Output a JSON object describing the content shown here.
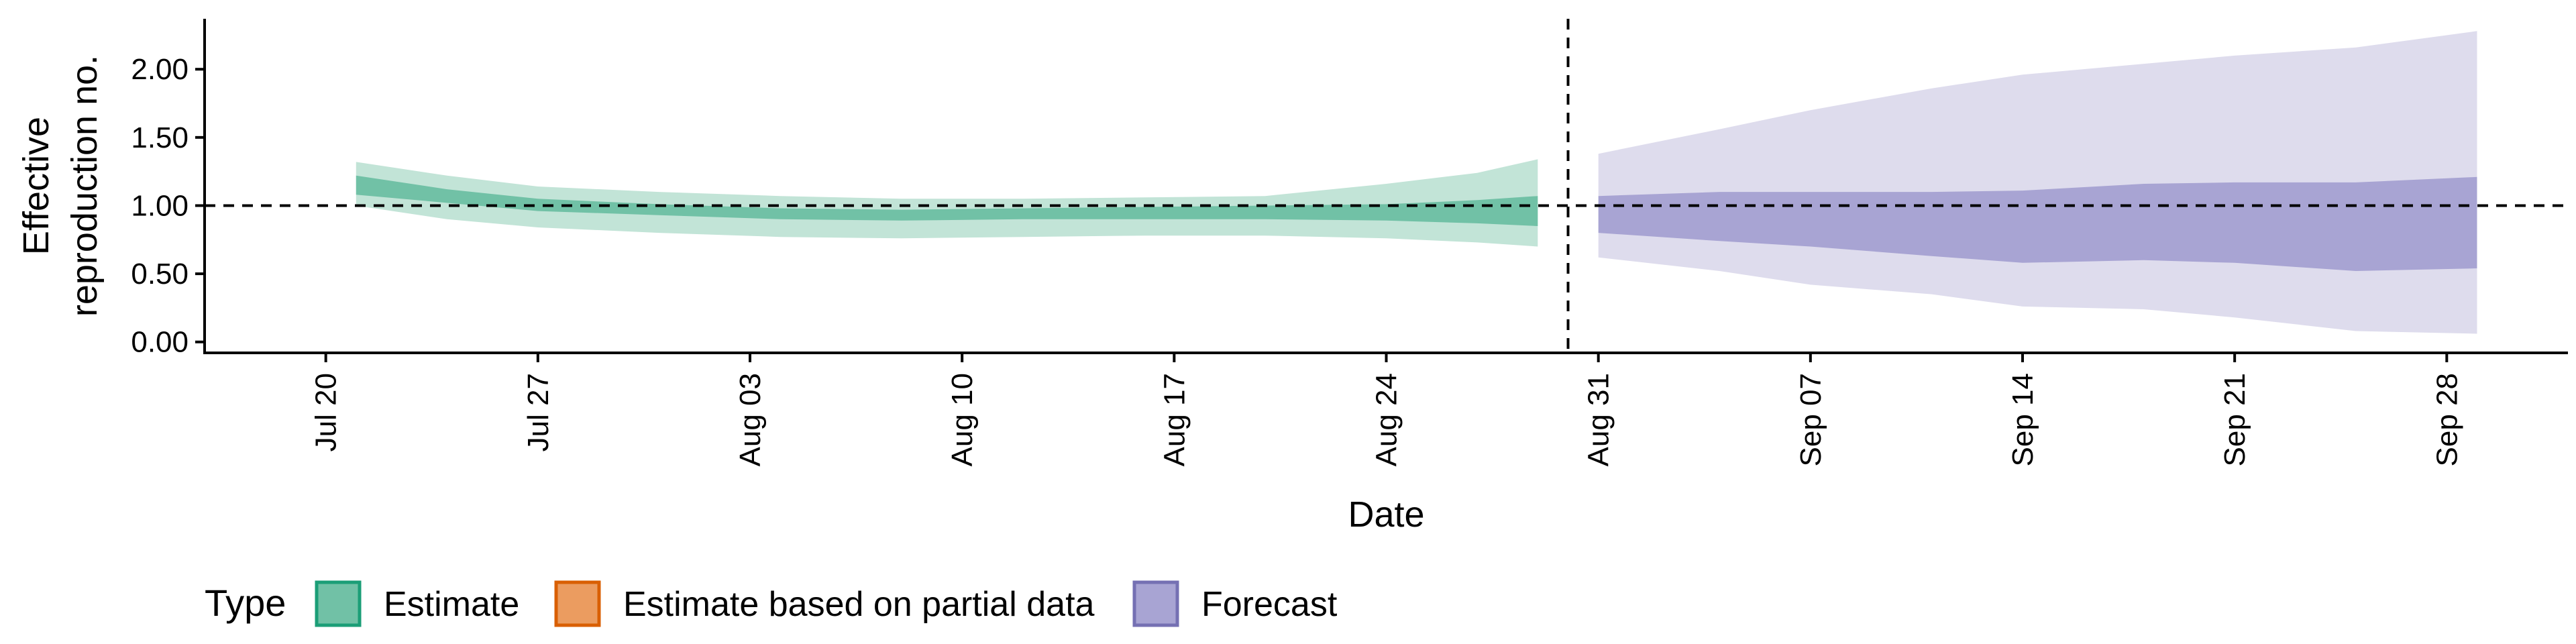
{
  "chart_data": {
    "type": "area",
    "xlabel": "Date",
    "ylabel_lines": [
      "Effective",
      "reproduction no."
    ],
    "ylim": [
      -0.08,
      2.37
    ],
    "yticks": [
      "0.00",
      "0.50",
      "1.00",
      "1.50",
      "2.00"
    ],
    "xlim": [
      "2020-07-16",
      "2020-10-02"
    ],
    "xticks": [
      {
        "date": "2020-07-20",
        "label": "Jul 20"
      },
      {
        "date": "2020-07-27",
        "label": "Jul 27"
      },
      {
        "date": "2020-08-03",
        "label": "Aug 03"
      },
      {
        "date": "2020-08-10",
        "label": "Aug 10"
      },
      {
        "date": "2020-08-17",
        "label": "Aug 17"
      },
      {
        "date": "2020-08-24",
        "label": "Aug 24"
      },
      {
        "date": "2020-08-31",
        "label": "Aug 31"
      },
      {
        "date": "2020-09-07",
        "label": "Sep 07"
      },
      {
        "date": "2020-09-14",
        "label": "Sep 14"
      },
      {
        "date": "2020-09-21",
        "label": "Sep 21"
      },
      {
        "date": "2020-09-28",
        "label": "Sep 28"
      }
    ],
    "reference_hline": 1.0,
    "reference_vline": "2020-08-30",
    "legend": {
      "title": "Type",
      "placement": "bottom",
      "entries": [
        {
          "label": "Estimate",
          "fill": "#71c1a6",
          "stroke": "#1b9e77"
        },
        {
          "label": "Estimate based on partial data",
          "fill": "#eb9c60",
          "stroke": "#d95f02"
        },
        {
          "label": "Forecast",
          "fill": "#a8a4d3",
          "stroke": "#7570b3"
        }
      ]
    },
    "series": [
      {
        "name": "Estimate",
        "outer_color": "#c2e4d7",
        "inner_color": "#71c1a6",
        "points": [
          {
            "x": "2020-07-21",
            "outer": [
              1.0,
              1.32
            ],
            "inner": [
              1.08,
              1.22
            ]
          },
          {
            "x": "2020-07-24",
            "outer": [
              0.9,
              1.22
            ],
            "inner": [
              1.02,
              1.12
            ]
          },
          {
            "x": "2020-07-27",
            "outer": [
              0.84,
              1.14
            ],
            "inner": [
              0.96,
              1.05
            ]
          },
          {
            "x": "2020-07-31",
            "outer": [
              0.8,
              1.1
            ],
            "inner": [
              0.93,
              1.01
            ]
          },
          {
            "x": "2020-08-04",
            "outer": [
              0.77,
              1.07
            ],
            "inner": [
              0.9,
              0.98
            ]
          },
          {
            "x": "2020-08-08",
            "outer": [
              0.76,
              1.05
            ],
            "inner": [
              0.89,
              0.97
            ]
          },
          {
            "x": "2020-08-12",
            "outer": [
              0.77,
              1.05
            ],
            "inner": [
              0.9,
              0.98
            ]
          },
          {
            "x": "2020-08-16",
            "outer": [
              0.78,
              1.06
            ],
            "inner": [
              0.9,
              0.99
            ]
          },
          {
            "x": "2020-08-20",
            "outer": [
              0.78,
              1.07
            ],
            "inner": [
              0.9,
              1.0
            ]
          },
          {
            "x": "2020-08-24",
            "outer": [
              0.76,
              1.16
            ],
            "inner": [
              0.89,
              1.01
            ]
          },
          {
            "x": "2020-08-27",
            "outer": [
              0.73,
              1.24
            ],
            "inner": [
              0.87,
              1.04
            ]
          },
          {
            "x": "2020-08-29",
            "outer": [
              0.7,
              1.34
            ],
            "inner": [
              0.85,
              1.07
            ]
          }
        ]
      },
      {
        "name": "Forecast",
        "outer_color": "#dedced",
        "inner_color": "#a8a4d3",
        "points": [
          {
            "x": "2020-08-31",
            "outer": [
              0.62,
              1.38
            ],
            "inner": [
              0.8,
              1.07
            ]
          },
          {
            "x": "2020-09-04",
            "outer": [
              0.52,
              1.56
            ],
            "inner": [
              0.74,
              1.1
            ]
          },
          {
            "x": "2020-09-07",
            "outer": [
              0.42,
              1.7
            ],
            "inner": [
              0.7,
              1.1
            ]
          },
          {
            "x": "2020-09-11",
            "outer": [
              0.35,
              1.86
            ],
            "inner": [
              0.63,
              1.1
            ]
          },
          {
            "x": "2020-09-14",
            "outer": [
              0.26,
              1.96
            ],
            "inner": [
              0.58,
              1.11
            ]
          },
          {
            "x": "2020-09-18",
            "outer": [
              0.24,
              2.04
            ],
            "inner": [
              0.6,
              1.16
            ]
          },
          {
            "x": "2020-09-21",
            "outer": [
              0.18,
              2.1
            ],
            "inner": [
              0.58,
              1.17
            ]
          },
          {
            "x": "2020-09-25",
            "outer": [
              0.08,
              2.16
            ],
            "inner": [
              0.52,
              1.17
            ]
          },
          {
            "x": "2020-09-29",
            "outer": [
              0.06,
              2.28
            ],
            "inner": [
              0.54,
              1.21
            ]
          }
        ]
      }
    ]
  }
}
